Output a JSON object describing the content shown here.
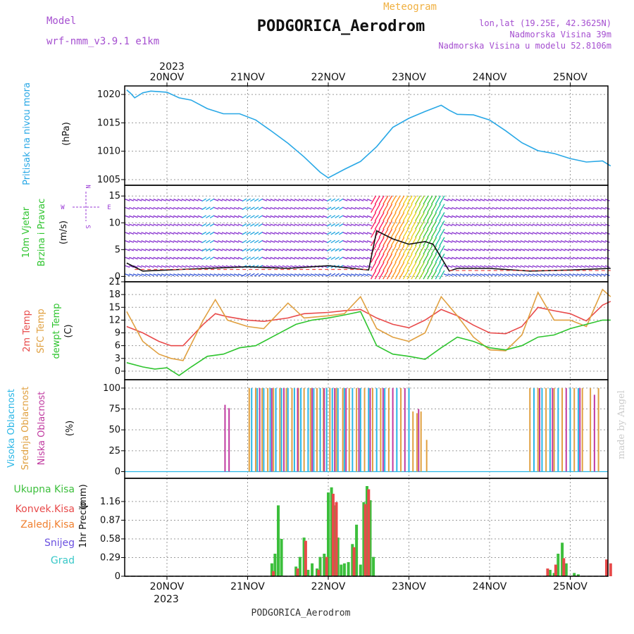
{
  "header": {
    "model_label": "Model",
    "model_name": "wrf-nmm_v3.9.1 e1km",
    "meteogram_label": "Meteogram",
    "station_title": "PODGORICA_Aerodrom",
    "lonlat": "lon,lat (19.25E, 42.3625N)",
    "altitude": "Nadmorska Visina 39m",
    "model_altitude": "Nadmorska Visina u modelu 52.8106m"
  },
  "footer": {
    "station": "PODGORICA_Aerodrom",
    "watermark": "made by Angel"
  },
  "time_axis": {
    "year": "2023",
    "day_labels": [
      "20NOV",
      "21NOV",
      "22NOV",
      "23NOV",
      "24NOV",
      "25NOV"
    ],
    "start_day_offset": -0.5,
    "end_day_offset": 5.5
  },
  "colors": {
    "pressure": "#29a8e6",
    "temp_2m": "#e84a4a",
    "temp_sfc": "#e0a040",
    "dewpoint": "#2ec42e",
    "cloud_high": "#29b6e6",
    "cloud_mid": "#e0a040",
    "cloud_low": "#c03aa0",
    "precip_total": "#3cbf3c",
    "precip_conv": "#e84a4a",
    "precip_frozen": "#f08030",
    "precip_snow": "#6a50e0",
    "precip_graupel": "#39c8c8",
    "wind_label_purple": "#9a3ad6",
    "title_purple": "#a54fd0",
    "meteogram_orange": "#f0b040"
  },
  "chart_data": [
    {
      "type": "line",
      "panel": "pressure",
      "ylabel_name": "Pritisak na nivou mora",
      "ylabel_unit": "(hPa)",
      "ylim": [
        1004,
        1021.5
      ],
      "yticks": [
        1005,
        1010,
        1015,
        1020
      ],
      "grid": true,
      "series": [
        {
          "key": "pressure",
          "x": [
            -0.5,
            -0.45,
            -0.4,
            -0.3,
            -0.2,
            0,
            0.15,
            0.3,
            0.5,
            0.7,
            0.9,
            1.1,
            1.3,
            1.5,
            1.7,
            1.9,
            2.0,
            2.2,
            2.4,
            2.6,
            2.8,
            3.0,
            3.2,
            3.4,
            3.5,
            3.6,
            3.8,
            4.0,
            4.2,
            4.4,
            4.6,
            4.8,
            5.0,
            5.2,
            5.4,
            5.5
          ],
          "values": [
            1020.8,
            1020.2,
            1019.4,
            1020.3,
            1020.6,
            1020.4,
            1019.4,
            1019.0,
            1017.5,
            1016.6,
            1016.6,
            1015.5,
            1013.5,
            1011.4,
            1009.0,
            1006.3,
            1005.3,
            1006.8,
            1008.2,
            1010.8,
            1014.2,
            1015.8,
            1017.0,
            1018.1,
            1017.2,
            1016.5,
            1016.4,
            1015.5,
            1013.6,
            1011.5,
            1010.1,
            1009.6,
            1008.7,
            1008.1,
            1008.3,
            1007.4
          ]
        }
      ]
    },
    {
      "type": "line",
      "panel": "wind",
      "ylabel_name": "10m Vjetar",
      "ylabel_name2": "Brzina i Pravac",
      "ylabel_unit": "(m/s)",
      "compass": [
        "N",
        "W",
        "E",
        "S"
      ],
      "ylim": [
        -1,
        17
      ],
      "yticks": [
        0,
        5,
        10,
        15
      ],
      "grid": true,
      "series": [
        {
          "name": "wind speed",
          "x": [
            -0.5,
            -0.3,
            0,
            0.5,
            1.0,
            1.5,
            2.0,
            2.3,
            2.5,
            2.6,
            2.8,
            3.0,
            3.2,
            3.3,
            3.4,
            3.5,
            3.6,
            4.0,
            4.5,
            5.0,
            5.5
          ],
          "values": [
            2.5,
            1.0,
            1.2,
            1.5,
            1.8,
            1.5,
            2.0,
            1.5,
            1.2,
            8.5,
            7.0,
            6.0,
            6.5,
            6.0,
            3.5,
            1.0,
            1.5,
            1.5,
            1.0,
            1.2,
            1.5
          ]
        }
      ]
    },
    {
      "type": "line",
      "panel": "temperature",
      "ylabel_name": "2m Temp",
      "ylabel_name2": "SFC Temp",
      "ylabel_name3": "dewpt Temp",
      "ylabel_unit": "(C)",
      "ylim": [
        -2,
        21
      ],
      "yticks": [
        0,
        3,
        6,
        9,
        12,
        15,
        18,
        21
      ],
      "grid": true,
      "series": [
        {
          "key": "temp_2m",
          "x": [
            -0.5,
            -0.3,
            -0.1,
            0.05,
            0.2,
            0.45,
            0.6,
            0.75,
            1.0,
            1.2,
            1.5,
            1.7,
            2.0,
            2.2,
            2.4,
            2.6,
            2.8,
            3.0,
            3.2,
            3.4,
            3.6,
            3.8,
            4.0,
            4.2,
            4.4,
            4.6,
            4.8,
            5.0,
            5.2,
            5.4,
            5.5
          ],
          "values": [
            10.5,
            9.0,
            7.0,
            6.0,
            6.0,
            11.0,
            13.5,
            12.8,
            12.0,
            11.7,
            12.5,
            13.5,
            13.8,
            14.2,
            14.5,
            12.5,
            11.0,
            10.2,
            12.0,
            14.5,
            13.0,
            10.8,
            9.0,
            8.8,
            10.5,
            15.0,
            14.2,
            13.5,
            11.8,
            15.5,
            16.4
          ]
        },
        {
          "key": "temp_sfc",
          "x": [
            -0.5,
            -0.3,
            -0.1,
            0.05,
            0.2,
            0.45,
            0.6,
            0.75,
            1.0,
            1.2,
            1.5,
            1.7,
            2.0,
            2.2,
            2.4,
            2.6,
            2.8,
            3.0,
            3.2,
            3.4,
            3.6,
            3.8,
            4.0,
            4.2,
            4.4,
            4.6,
            4.8,
            5.0,
            5.2,
            5.4,
            5.5
          ],
          "values": [
            14.0,
            7.0,
            4.0,
            3.0,
            2.5,
            12.0,
            16.8,
            12.0,
            10.5,
            10.0,
            16.0,
            12.5,
            13.0,
            13.5,
            17.5,
            10.0,
            8.0,
            7.0,
            9.0,
            17.5,
            13.0,
            8.0,
            5.0,
            4.8,
            8.5,
            18.5,
            12.0,
            12.0,
            10.5,
            19.2,
            17.5
          ]
        },
        {
          "key": "dewpoint",
          "x": [
            -0.5,
            -0.3,
            -0.15,
            0.0,
            0.15,
            0.3,
            0.5,
            0.7,
            0.9,
            1.1,
            1.3,
            1.6,
            1.8,
            2.0,
            2.2,
            2.4,
            2.6,
            2.8,
            3.0,
            3.2,
            3.4,
            3.6,
            3.8,
            4.0,
            4.2,
            4.4,
            4.6,
            4.8,
            5.0,
            5.2,
            5.4,
            5.5
          ],
          "values": [
            2.0,
            1.0,
            0.5,
            0.8,
            -1.0,
            1.0,
            3.5,
            4.0,
            5.5,
            6.0,
            8.0,
            11.0,
            12.0,
            12.5,
            13.2,
            14.0,
            6.0,
            4.0,
            3.5,
            2.8,
            5.5,
            8.0,
            7.0,
            5.5,
            5.0,
            6.0,
            8.0,
            8.5,
            10.0,
            11.0,
            12.0,
            12.0
          ]
        }
      ]
    },
    {
      "type": "bar",
      "panel": "clouds",
      "ylabel_name": "Visoka Oblacnost",
      "ylabel_name2": "Srednja Oblacnost",
      "ylabel_name3": "Niska Oblacnost",
      "ylabel_unit": "(%)",
      "ylim": [
        -8,
        110
      ],
      "yticks": [
        0,
        25,
        50,
        75,
        100
      ],
      "grid": true,
      "series": [
        {
          "key": "cloud_high",
          "x": [
            1.05,
            1.12,
            1.2,
            1.28,
            1.35,
            1.42,
            1.5,
            1.58,
            1.66,
            1.75,
            1.82,
            1.9,
            1.98,
            2.05,
            2.12,
            2.2,
            2.3,
            2.4,
            2.5,
            2.6,
            2.7,
            2.85,
            3.0,
            4.55,
            4.65,
            4.75,
            4.85,
            5.0,
            5.1
          ],
          "values": [
            100,
            100,
            100,
            100,
            100,
            100,
            100,
            100,
            100,
            100,
            100,
            100,
            100,
            100,
            100,
            100,
            100,
            100,
            100,
            100,
            100,
            100,
            100,
            100,
            100,
            100,
            100,
            100,
            100
          ]
        },
        {
          "key": "cloud_mid",
          "x": [
            1.02,
            1.1,
            1.18,
            1.25,
            1.32,
            1.4,
            1.48,
            1.55,
            1.63,
            1.7,
            1.78,
            1.86,
            1.94,
            2.02,
            2.1,
            2.18,
            2.26,
            2.35,
            2.45,
            2.55,
            2.65,
            2.75,
            2.9,
            3.05,
            3.1,
            3.15,
            3.22,
            4.5,
            4.6,
            4.7,
            4.8,
            4.9,
            5.05,
            5.15,
            5.25,
            5.35
          ],
          "values": [
            100,
            100,
            100,
            100,
            100,
            100,
            100,
            100,
            100,
            100,
            100,
            100,
            100,
            100,
            100,
            100,
            100,
            100,
            100,
            100,
            100,
            100,
            100,
            72,
            70,
            72,
            38,
            100,
            100,
            100,
            100,
            100,
            100,
            100,
            100,
            100
          ]
        },
        {
          "key": "cloud_low",
          "x": [
            0.72,
            0.77,
            1.15,
            1.3,
            1.45,
            1.62,
            1.8,
            1.95,
            2.08,
            2.22,
            2.38,
            2.52,
            2.68,
            2.8,
            2.95,
            3.12,
            4.62,
            4.78,
            4.95,
            5.12,
            5.3
          ],
          "values": [
            80,
            76,
            100,
            100,
            100,
            100,
            100,
            100,
            100,
            100,
            100,
            100,
            100,
            100,
            100,
            75,
            100,
            100,
            100,
            100,
            92
          ]
        }
      ]
    },
    {
      "type": "bar",
      "panel": "precipitation",
      "ylabel_name": "1hr Precip",
      "ylabel_unit": "(mm)",
      "legend": [
        "Ukupna Kisa",
        "Konvek.Kisa",
        "Zaledj.Kisa",
        "Snijeg",
        "Grad"
      ],
      "ylim": [
        0,
        1.52
      ],
      "yticks": [
        0,
        0.29,
        0.58,
        0.87,
        1.16
      ],
      "grid": true,
      "series": [
        {
          "key": "precip_total",
          "x": [
            1.3,
            1.34,
            1.38,
            1.42,
            1.6,
            1.65,
            1.7,
            1.75,
            1.8,
            1.86,
            1.9,
            1.95,
            2.0,
            2.04,
            2.08,
            2.12,
            2.16,
            2.2,
            2.25,
            2.3,
            2.35,
            2.4,
            2.44,
            2.48,
            2.52,
            2.56,
            4.75,
            4.8,
            4.85,
            4.9,
            4.95,
            5.05,
            5.1
          ],
          "values": [
            0.2,
            0.35,
            1.1,
            0.58,
            0.15,
            0.3,
            0.6,
            0.1,
            0.2,
            0.12,
            0.3,
            0.35,
            1.3,
            1.38,
            1.1,
            0.6,
            0.18,
            0.2,
            0.22,
            0.5,
            0.8,
            0.18,
            1.15,
            1.4,
            1.18,
            0.3,
            0.1,
            0.05,
            0.35,
            0.52,
            0.2,
            0.05,
            0.03
          ]
        },
        {
          "key": "precip_conv",
          "x": [
            1.32,
            1.62,
            1.72,
            1.88,
            1.98,
            2.06,
            2.1,
            2.32,
            2.46,
            2.5,
            4.72,
            4.82,
            4.92,
            5.45,
            5.5
          ],
          "values": [
            0.08,
            0.12,
            0.55,
            0.1,
            0.3,
            1.28,
            1.15,
            0.45,
            1.12,
            1.35,
            0.12,
            0.18,
            0.28,
            0.26,
            0.2
          ]
        }
      ]
    }
  ]
}
